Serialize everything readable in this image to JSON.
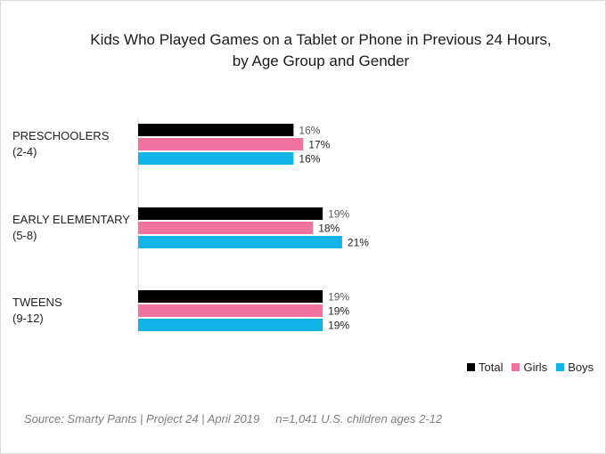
{
  "chart_data": {
    "type": "bar",
    "orientation": "horizontal",
    "title": "Kids Who Played Games on a Tablet or Phone in Previous 24 Hours,",
    "subtitle": "by Age Group and Gender",
    "categories": [
      {
        "line1": "PRESCHOOLERS",
        "line2": "(2-4)"
      },
      {
        "line1": "EARLY ELEMENTARY",
        "line2": " (5-8)"
      },
      {
        "line1": "TWEENS",
        "line2": "(9-12)"
      }
    ],
    "series": [
      {
        "name": "Total",
        "color": "#000000",
        "values": [
          16,
          19,
          19
        ],
        "labels": [
          "16%",
          "19%",
          "19%"
        ]
      },
      {
        "name": "Girls",
        "color": "#f272a0",
        "values": [
          17,
          18,
          19
        ],
        "labels": [
          "17%",
          "18%",
          "19%"
        ]
      },
      {
        "name": "Boys",
        "color": "#12b4e8",
        "values": [
          16,
          21,
          19
        ],
        "labels": [
          "16%",
          "21%",
          "19%"
        ]
      }
    ],
    "label_colors": [
      "#595959",
      "#222222",
      "#222222"
    ],
    "xlim": [
      0,
      25
    ],
    "grid": false,
    "legend_position": "bottom-right"
  },
  "source": "Source: Smarty Pants | Project 24 | April 2019     n=1,041 U.S. children ages 2-12"
}
